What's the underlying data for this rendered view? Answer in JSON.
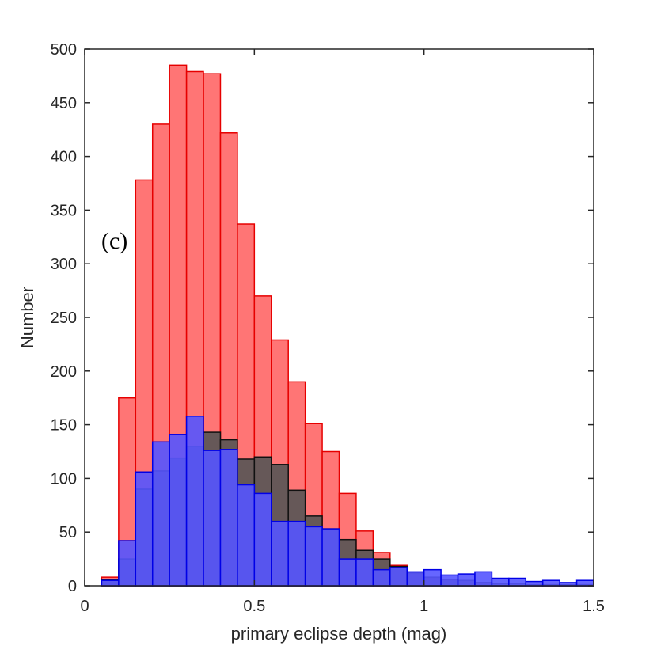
{
  "chart_data": {
    "type": "bar",
    "title": "",
    "xlabel": "primary eclipse depth (mag)",
    "ylabel": "Number",
    "annotation": "(c)",
    "xlim": [
      0,
      1.5
    ],
    "ylim": [
      0,
      500
    ],
    "xticks": [
      0,
      0.5,
      1,
      1.5
    ],
    "xtick_labels": [
      "0",
      "0.5",
      "1",
      "1.5"
    ],
    "yticks": [
      0,
      50,
      100,
      150,
      200,
      250,
      300,
      350,
      400,
      450,
      500
    ],
    "ytick_labels": [
      "0",
      "50",
      "100",
      "150",
      "200",
      "250",
      "300",
      "350",
      "400",
      "450",
      "500"
    ],
    "grid": false,
    "bin_width": 0.05,
    "bin_starts": [
      0.05,
      0.1,
      0.15,
      0.2,
      0.25,
      0.3,
      0.35,
      0.4,
      0.45,
      0.5,
      0.55,
      0.6,
      0.65,
      0.7,
      0.75,
      0.8,
      0.85,
      0.9,
      0.95,
      1.0,
      1.05,
      1.1,
      1.15,
      1.2,
      1.25,
      1.3,
      1.35,
      1.4,
      1.45
    ],
    "series": [
      {
        "values": [
          8,
          175,
          378,
          430,
          485,
          479,
          477,
          422,
          337,
          270,
          229,
          190,
          151,
          125,
          86,
          51,
          31,
          19,
          11,
          7,
          5,
          4,
          3,
          2,
          2,
          1,
          1,
          1,
          1
        ],
        "fill": "#ff6666",
        "edge": "#e60000"
      },
      {
        "values": [
          6,
          25,
          90,
          107,
          119,
          130,
          143,
          136,
          118,
          120,
          113,
          89,
          65,
          53,
          43,
          33,
          25,
          18,
          12,
          8,
          6,
          5,
          3,
          2,
          2,
          1,
          1,
          1,
          1
        ],
        "fill": "#555555",
        "edge": "#111111"
      },
      {
        "values": [
          5,
          42,
          106,
          134,
          141,
          158,
          126,
          127,
          94,
          86,
          60,
          60,
          55,
          53,
          25,
          25,
          15,
          17,
          13,
          15,
          10,
          11,
          13,
          7,
          7,
          4,
          5,
          3,
          5
        ],
        "fill": "#5555ff",
        "edge": "#0000e6"
      }
    ]
  }
}
